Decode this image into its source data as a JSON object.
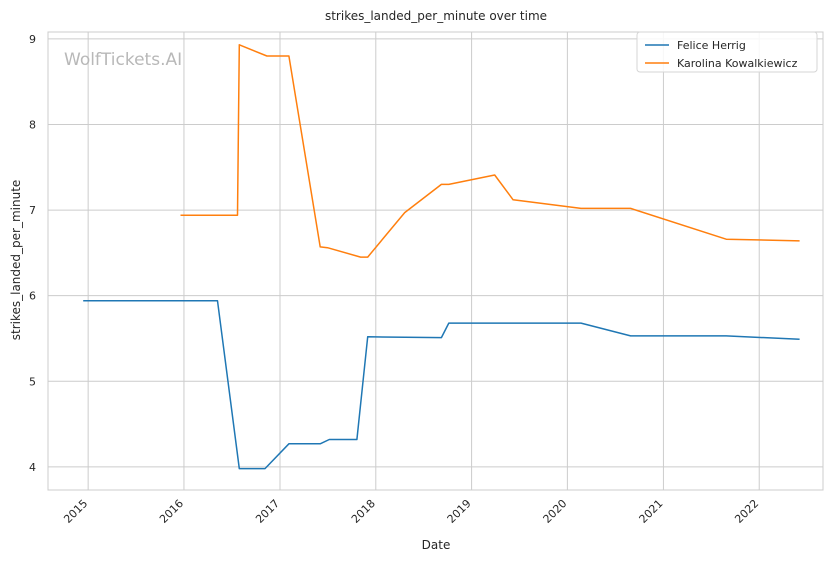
{
  "chart_data": {
    "type": "line",
    "title": "strikes_landed_per_minute over time",
    "xlabel": "Date",
    "ylabel": "strikes_landed_per_minute",
    "watermark": "WolfTickets.AI",
    "grid": true,
    "legend_position": "top-right",
    "x_ticks": [
      "2015",
      "2016",
      "2017",
      "2018",
      "2019",
      "2020",
      "2021",
      "2022"
    ],
    "y_ticks": [
      "4",
      "5",
      "6",
      "7",
      "8",
      "9"
    ],
    "xlim": [
      "2014-08-01",
      "2022-09-01"
    ],
    "ylim": [
      3.73,
      9.08
    ],
    "series": [
      {
        "name": "Felice Herrig",
        "color": "#1f77b4",
        "points": [
          [
            "2014-12-13",
            5.94
          ],
          [
            "2016-05-08",
            5.94
          ],
          [
            "2016-07-30",
            3.98
          ],
          [
            "2016-11-05",
            3.98
          ],
          [
            "2017-02-04",
            4.27
          ],
          [
            "2017-06-03",
            4.27
          ],
          [
            "2017-07-08",
            4.32
          ],
          [
            "2017-10-21",
            4.32
          ],
          [
            "2017-12-01",
            5.52
          ],
          [
            "2018-09-08",
            5.51
          ],
          [
            "2018-10-06",
            5.68
          ],
          [
            "2020-02-22",
            5.68
          ],
          [
            "2020-08-29",
            5.53
          ],
          [
            "2021-08-28",
            5.53
          ],
          [
            "2022-06-04",
            5.49
          ]
        ]
      },
      {
        "name": "Karolina Kowalkiewicz",
        "color": "#ff7f0e",
        "points": [
          [
            "2015-12-19",
            6.94
          ],
          [
            "2016-07-23",
            6.94
          ],
          [
            "2016-07-30",
            8.93
          ],
          [
            "2016-11-12",
            8.8
          ],
          [
            "2017-02-04",
            8.8
          ],
          [
            "2017-06-03",
            6.57
          ],
          [
            "2017-07-01",
            6.56
          ],
          [
            "2017-11-04",
            6.45
          ],
          [
            "2017-12-01",
            6.45
          ],
          [
            "2018-04-21",
            6.97
          ],
          [
            "2018-09-08",
            7.3
          ],
          [
            "2018-10-06",
            7.3
          ],
          [
            "2019-03-30",
            7.41
          ],
          [
            "2019-06-08",
            7.12
          ],
          [
            "2020-02-22",
            7.02
          ],
          [
            "2020-08-29",
            7.02
          ],
          [
            "2021-08-28",
            6.66
          ],
          [
            "2022-06-04",
            6.64
          ]
        ]
      }
    ]
  }
}
